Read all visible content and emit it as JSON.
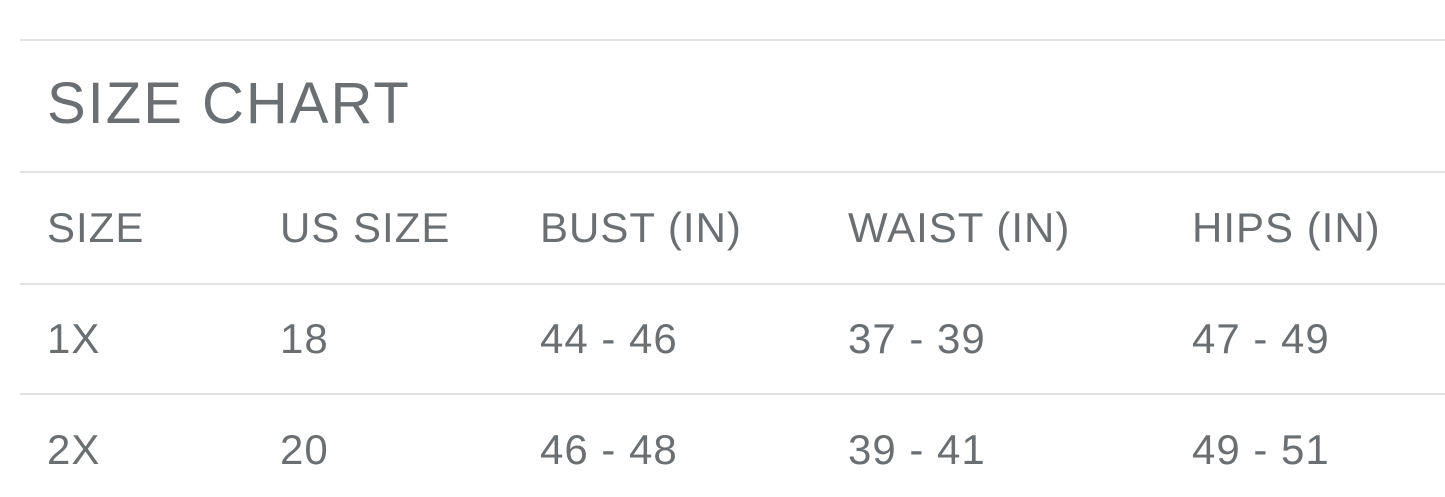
{
  "page": {
    "title": "SIZE CHART"
  },
  "size_table": {
    "columns": [
      "SIZE",
      "US SIZE",
      "BUST (IN)",
      "WAIST (IN)",
      "HIPS (IN)"
    ],
    "rows": [
      [
        "1X",
        "18",
        "44 - 46",
        "37 - 39",
        "47 - 49"
      ],
      [
        "2X",
        "20",
        "46 - 48",
        "39 - 41",
        "49 - 51"
      ]
    ]
  },
  "colors": {
    "text": "#6b6f72",
    "divider": "#e2e2e4",
    "background": "#ffffff"
  }
}
